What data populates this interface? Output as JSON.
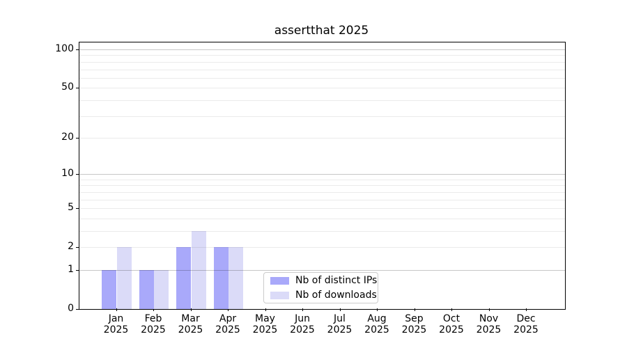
{
  "chart_data": {
    "type": "bar",
    "title": "assertthat 2025",
    "year": "2025",
    "months": [
      "Jan",
      "Feb",
      "Mar",
      "Apr",
      "May",
      "Jun",
      "Jul",
      "Aug",
      "Sep",
      "Oct",
      "Nov",
      "Dec"
    ],
    "series": [
      {
        "name": "Nb of distinct IPs",
        "color": "#a9a9fa",
        "values": [
          1,
          1,
          2,
          2,
          0,
          0,
          0,
          0,
          0,
          0,
          0,
          0
        ]
      },
      {
        "name": "Nb of downloads",
        "color": "#dbdbf8",
        "values": [
          2,
          1,
          3,
          2,
          0,
          0,
          0,
          0,
          0,
          0,
          0,
          0
        ]
      }
    ],
    "yscale": "log1p",
    "ylim": [
      0,
      115
    ],
    "yticks": [
      0,
      1,
      2,
      5,
      10,
      20,
      50,
      100
    ],
    "grid": {
      "major": [
        1,
        10,
        100
      ],
      "minor": [
        2,
        3,
        4,
        5,
        6,
        7,
        8,
        9,
        20,
        30,
        40,
        50,
        60,
        70,
        80,
        90
      ]
    },
    "xlabel": "",
    "ylabel": "",
    "legend_position": "lower right inside"
  },
  "colors": {
    "background": "#ffffff",
    "axis": "#000000",
    "major_grid_rgba": "rgba(0,0,0,0.22)",
    "minor_grid_rgba": "rgba(0,0,0,0.08)",
    "legend_border": "#cccccc",
    "text": "#000000"
  }
}
